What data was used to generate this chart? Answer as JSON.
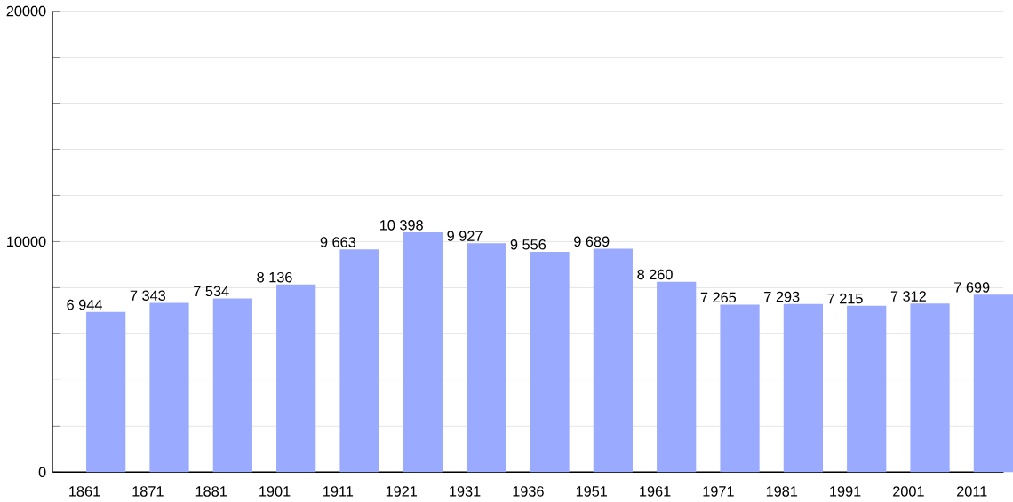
{
  "chart_data": {
    "type": "bar",
    "categories": [
      "1861",
      "1871",
      "1881",
      "1901",
      "1911",
      "1921",
      "1931",
      "1936",
      "1951",
      "1961",
      "1971",
      "1981",
      "1991",
      "2001",
      "2011"
    ],
    "values": [
      6944,
      7343,
      7534,
      8136,
      9663,
      10398,
      9927,
      9556,
      9689,
      8260,
      7265,
      7293,
      7215,
      7312,
      7699
    ],
    "value_labels": [
      "6 944",
      "7 343",
      "7 534",
      "8 136",
      "9 663",
      "10 398",
      "9 927",
      "9 556",
      "9 689",
      "8 260",
      "7 265",
      "7 293",
      "7 215",
      "7 312",
      "7 699"
    ],
    "color": "#99aaff",
    "ylim": [
      0,
      20000
    ],
    "yticks": [
      0,
      {
        "value": 2000,
        "label": null
      },
      {
        "value": 4000,
        "label": null
      },
      {
        "value": 6000,
        "label": null
      },
      {
        "value": 8000,
        "label": null
      },
      10000,
      {
        "value": 12000,
        "label": null
      },
      {
        "value": 14000,
        "label": null
      },
      {
        "value": 16000,
        "label": null
      },
      {
        "value": 18000,
        "label": null
      },
      20000
    ],
    "grid": "y",
    "legend": false
  }
}
